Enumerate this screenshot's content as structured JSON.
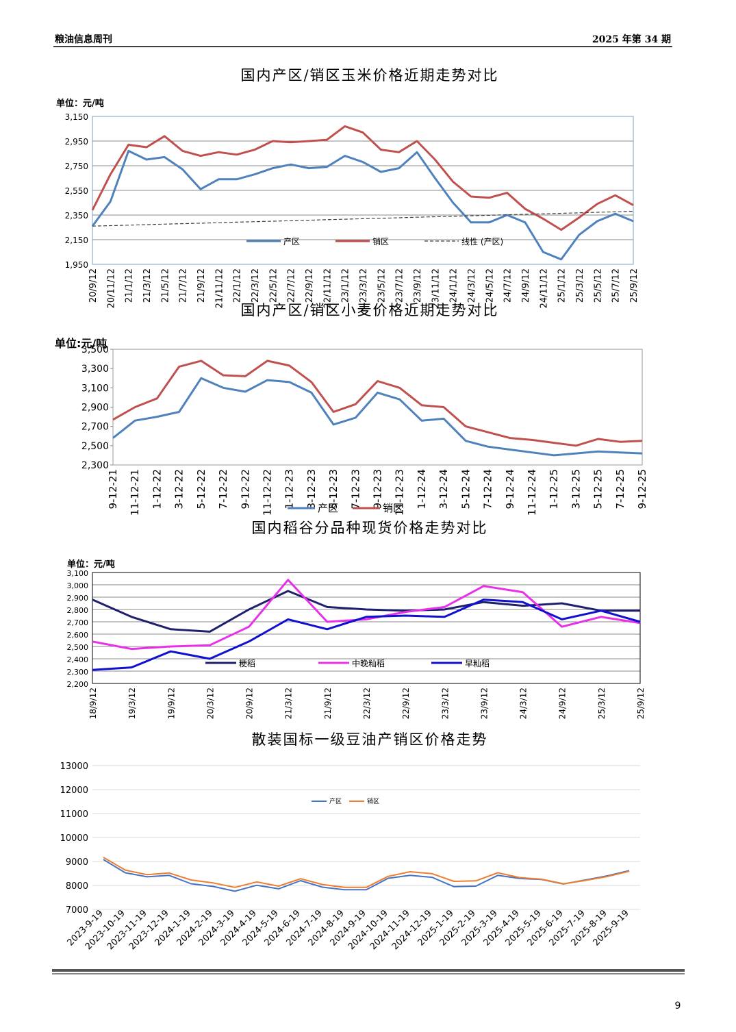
{
  "header": {
    "left": "粮油信息周刊",
    "right": "2025 年第 34 期"
  },
  "page_number": "9",
  "chart_data": [
    {
      "type": "line",
      "title": "国内产区/销区玉米价格近期走势对比",
      "unit": "单位：元/吨",
      "categories": [
        "20/9/12",
        "20/11/12",
        "21/1/12",
        "21/3/12",
        "21/5/12",
        "21/7/12",
        "21/9/12",
        "21/11/12",
        "22/1/12",
        "22/3/12",
        "22/5/12",
        "22/7/12",
        "22/9/12",
        "22/11/12",
        "23/1/12",
        "23/3/12",
        "23/5/12",
        "23/7/12",
        "23/9/12",
        "23/11/12",
        "24/1/12",
        "24/3/12",
        "24/5/12",
        "24/7/12",
        "24/9/12",
        "24/11/12",
        "25/1/12",
        "25/3/12",
        "25/5/12",
        "25/7/12",
        "25/9/12"
      ],
      "series": [
        {
          "name": "产区",
          "color": "#4f81bd",
          "values": [
            2260,
            2460,
            2870,
            2800,
            2820,
            2720,
            2560,
            2640,
            2640,
            2680,
            2730,
            2760,
            2730,
            2740,
            2830,
            2780,
            2700,
            2730,
            2860,
            2650,
            2450,
            2290,
            2290,
            2350,
            2290,
            2050,
            1990,
            2190,
            2300,
            2360,
            2300
          ]
        },
        {
          "name": "销区",
          "color": "#c0504d",
          "values": [
            2390,
            2680,
            2920,
            2900,
            2990,
            2870,
            2830,
            2860,
            2840,
            2880,
            2950,
            2940,
            2950,
            2960,
            3070,
            3020,
            2880,
            2860,
            2950,
            2800,
            2620,
            2500,
            2490,
            2530,
            2400,
            2320,
            2230,
            2330,
            2440,
            2510,
            2430
          ]
        },
        {
          "name": "线性 (产区)",
          "color": "#404040",
          "dash": true,
          "values": [
            2260,
            2264,
            2268,
            2272,
            2276,
            2280,
            2284,
            2288,
            2292,
            2296,
            2300,
            2304,
            2308,
            2312,
            2316,
            2320,
            2324,
            2328,
            2332,
            2336,
            2340,
            2344,
            2348,
            2352,
            2356,
            2360,
            2364,
            2368,
            2372,
            2376,
            2380
          ]
        }
      ],
      "ylim": [
        1950,
        3150
      ],
      "yticks": [
        {
          "value": 1950,
          "label": "1,950"
        },
        {
          "value": 2150,
          "label": "2,150"
        },
        {
          "value": 2350,
          "label": "2,350"
        },
        {
          "value": 2550,
          "label": "2,550"
        },
        {
          "value": 2750,
          "label": "2,750"
        },
        {
          "value": 2950,
          "label": "2,950"
        },
        {
          "value": 3150,
          "label": "3,150"
        }
      ],
      "grid": true
    },
    {
      "type": "line",
      "title": "国内产区/销区小麦价格近期走势对比",
      "unit": "单位:元/吨",
      "categories": [
        "9-12-21",
        "11-12-21",
        "1-12-22",
        "3-12-22",
        "5-12-22",
        "7-12-22",
        "9-12-22",
        "11-12-22",
        "1-12-23",
        "3-12-23",
        "5-12-23",
        "7-12-23",
        "9-12-23",
        "11-12-23",
        "1-12-24",
        "3-12-24",
        "5-12-24",
        "7-12-24",
        "9-12-24",
        "11-12-24",
        "1-12-25",
        "3-12-25",
        "5-12-25",
        "7-12-25",
        "9-12-25"
      ],
      "series": [
        {
          "name": "产区",
          "color": "#4f81bd",
          "values": [
            2580,
            2760,
            2800,
            2850,
            3200,
            3100,
            3060,
            3180,
            3160,
            3050,
            2720,
            2790,
            3050,
            2980,
            2760,
            2780,
            2550,
            2490,
            2460,
            2430,
            2400,
            2420,
            2440,
            2430,
            2420
          ]
        },
        {
          "name": "销区",
          "color": "#c0504d",
          "values": [
            2770,
            2900,
            2990,
            3320,
            3380,
            3230,
            3220,
            3380,
            3330,
            3160,
            2850,
            2930,
            3170,
            3100,
            2920,
            2900,
            2700,
            2640,
            2580,
            2560,
            2530,
            2500,
            2570,
            2540,
            2550
          ]
        }
      ],
      "ylim": [
        2300,
        3500
      ],
      "yticks": [
        {
          "value": 2300,
          "label": "2,300"
        },
        {
          "value": 2500,
          "label": "2,500"
        },
        {
          "value": 2700,
          "label": "2,700"
        },
        {
          "value": 2900,
          "label": "2,900"
        },
        {
          "value": 3100,
          "label": "3,100"
        },
        {
          "value": 3300,
          "label": "3,300"
        },
        {
          "value": 3500,
          "label": "3,500"
        }
      ],
      "grid": false
    },
    {
      "type": "line",
      "title": "国内稻谷分品种现货价格走势对比",
      "unit": "单位：元/吨",
      "categories": [
        "18/9/12",
        "19/3/12",
        "19/9/12",
        "20/3/12",
        "20/9/12",
        "21/3/12",
        "21/9/12",
        "22/3/12",
        "22/9/12",
        "23/3/12",
        "23/9/12",
        "24/3/12",
        "24/9/12",
        "25/3/12",
        "25/9/12"
      ],
      "series": [
        {
          "name": "粳稻",
          "color": "#1f1f70",
          "values": [
            2880,
            2740,
            2640,
            2620,
            2800,
            2950,
            2820,
            2800,
            2790,
            2800,
            2860,
            2830,
            2850,
            2790,
            2790
          ]
        },
        {
          "name": "中晚籼稻",
          "color": "#e830e8",
          "values": [
            2540,
            2480,
            2500,
            2510,
            2660,
            3040,
            2700,
            2720,
            2780,
            2820,
            2990,
            2940,
            2660,
            2740,
            2690
          ]
        },
        {
          "name": "早籼稻",
          "color": "#1010d0",
          "values": [
            2310,
            2330,
            2460,
            2400,
            2540,
            2720,
            2640,
            2740,
            2750,
            2740,
            2880,
            2860,
            2720,
            2790,
            2700
          ]
        }
      ],
      "ylim": [
        2200,
        3100
      ],
      "yticks": [
        {
          "value": 2200,
          "label": "2,200"
        },
        {
          "value": 2300,
          "label": "2,300"
        },
        {
          "value": 2400,
          "label": "2,400"
        },
        {
          "value": 2500,
          "label": "2,500"
        },
        {
          "value": 2600,
          "label": "2,600"
        },
        {
          "value": 2700,
          "label": "2,700"
        },
        {
          "value": 2800,
          "label": "2,800"
        },
        {
          "value": 2900,
          "label": "2,900"
        },
        {
          "value": 3000,
          "label": "3,000"
        },
        {
          "value": 3100,
          "label": "3,100"
        }
      ],
      "grid": true
    },
    {
      "type": "line",
      "title": "散装国标一级豆油产销区价格走势",
      "categories": [
        "2023-9-19",
        "2023-10-19",
        "2023-11-19",
        "2023-12-19",
        "2024-1-19",
        "2024-2-19",
        "2024-3-19",
        "2024-4-19",
        "2024-5-19",
        "2024-6-19",
        "2024-7-19",
        "2024-8-19",
        "2024-9-19",
        "2024-10-19",
        "2024-11-19",
        "2024-12-19",
        "2025-1-19",
        "2025-2-19",
        "2025-3-19",
        "2025-4-19",
        "2025-5-19",
        "2025-6-19",
        "2025-7-19",
        "2025-8-19",
        "2025-9-19"
      ],
      "series": [
        {
          "name": "产区",
          "color": "#4472c4",
          "values": [
            9080,
            8530,
            8360,
            8420,
            8070,
            7960,
            7760,
            8010,
            7860,
            8200,
            7930,
            7820,
            7820,
            8300,
            8420,
            8340,
            7950,
            7970,
            8420,
            8290,
            8250,
            8060,
            8230,
            8400,
            8620
          ]
        },
        {
          "name": "销区",
          "color": "#ed7d31",
          "values": [
            9170,
            8640,
            8450,
            8520,
            8230,
            8110,
            7920,
            8150,
            7970,
            8280,
            8040,
            7920,
            7920,
            8380,
            8570,
            8490,
            8170,
            8190,
            8530,
            8330,
            8260,
            8070,
            8210,
            8370,
            8590
          ]
        }
      ],
      "ylim": [
        7000,
        13000
      ],
      "yticks": [
        7000,
        8000,
        9000,
        10000,
        11000,
        12000,
        13000
      ],
      "grid": true
    }
  ]
}
